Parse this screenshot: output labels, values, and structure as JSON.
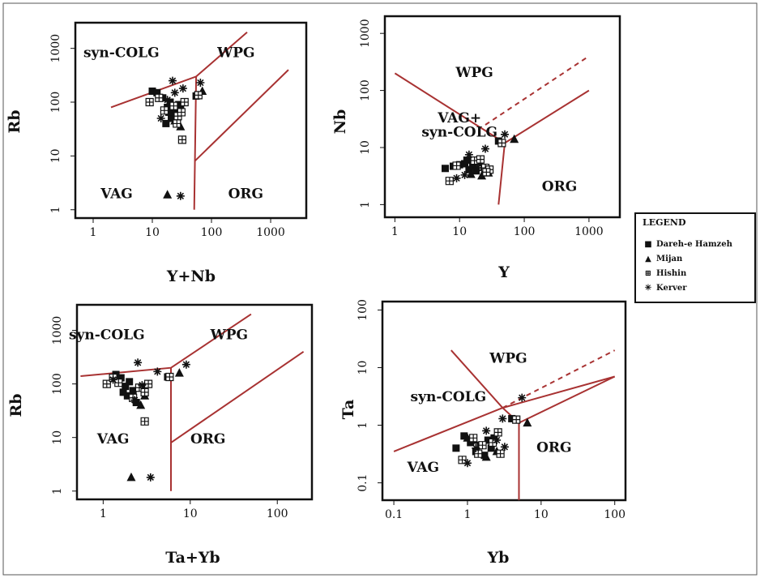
{
  "legend": {
    "title": "LEGEND",
    "items": [
      {
        "label": "Dareh-e Hamzeh",
        "symbol": "square"
      },
      {
        "label": "Mijan",
        "symbol": "triangle"
      },
      {
        "label": "Hishin",
        "symbol": "boxplus"
      },
      {
        "label": "Kerver",
        "symbol": "asterisk"
      }
    ]
  },
  "colors": {
    "line": "#a83232",
    "ink": "#111111"
  },
  "chart_data": [
    {
      "type": "scatter",
      "xlabel": "Y+Nb",
      "ylabel": "Rb",
      "xscale": "log",
      "yscale": "log",
      "xlim": [
        0.5,
        4000
      ],
      "ylim": [
        0.7,
        3000
      ],
      "xticks": [
        1,
        10,
        100,
        1000
      ],
      "yticks": [
        1,
        10,
        100,
        1000
      ],
      "regions": [
        {
          "label": "syn-COLG",
          "x": 3,
          "y": 800
        },
        {
          "label": "WPG",
          "x": 260,
          "y": 800
        },
        {
          "label": "VAG",
          "x": 2.5,
          "y": 1.9
        },
        {
          "label": "ORG",
          "x": 380,
          "y": 1.9
        }
      ],
      "boundaries": [
        {
          "style": "solid",
          "points": [
            [
              2,
              80
            ],
            [
              55,
              300
            ],
            [
              400,
              2000
            ]
          ]
        },
        {
          "style": "solid",
          "points": [
            [
              55,
              300
            ],
            [
              51,
              1
            ]
          ]
        },
        {
          "style": "solid",
          "points": [
            [
              52,
              8
            ],
            [
              2000,
              400
            ]
          ]
        }
      ],
      "series": [
        {
          "name": "Dareh-e Hamzeh",
          "symbol": "square",
          "points": [
            [
              10,
              160
            ],
            [
              12,
              150
            ],
            [
              15,
              120
            ],
            [
              18,
              80
            ],
            [
              20,
              100
            ],
            [
              22,
              60
            ],
            [
              25,
              70
            ],
            [
              17,
              40
            ],
            [
              28,
              90
            ],
            [
              21,
              50
            ],
            [
              30,
              75
            ],
            [
              55,
              130
            ],
            [
              19,
              65
            ]
          ]
        },
        {
          "name": "Mijan",
          "symbol": "triangle",
          "points": [
            [
              18,
              1.9
            ],
            [
              70,
              160
            ],
            [
              30,
              35
            ],
            [
              24,
              45
            ]
          ]
        },
        {
          "name": "Hishin",
          "symbol": "boxplus",
          "points": [
            [
              9,
              100
            ],
            [
              13,
              120
            ],
            [
              16,
              70
            ],
            [
              23,
              85
            ],
            [
              27,
              55
            ],
            [
              31,
              65
            ],
            [
              32,
              20
            ],
            [
              60,
              135
            ],
            [
              35,
              100
            ],
            [
              26,
              40
            ]
          ]
        },
        {
          "name": "Kerver",
          "symbol": "asterisk",
          "points": [
            [
              22,
              250
            ],
            [
              33,
              180
            ],
            [
              14,
              50
            ],
            [
              30,
              1.8
            ],
            [
              65,
              230
            ],
            [
              18,
              110
            ],
            [
              24,
              150
            ]
          ]
        }
      ]
    },
    {
      "type": "scatter",
      "xlabel": "Y",
      "ylabel": "Nb",
      "xscale": "log",
      "yscale": "log",
      "xlim": [
        0.7,
        3000
      ],
      "ylim": [
        0.6,
        2000
      ],
      "xticks": [
        1,
        10,
        100,
        1000
      ],
      "yticks": [
        1,
        10,
        100,
        1000
      ],
      "regions": [
        {
          "label": "WPG",
          "x": 17,
          "y": 200
        },
        {
          "label": "VAG+",
          "x": 10,
          "y": 32
        },
        {
          "label": "syn-COLG",
          "x": 10,
          "y": 18
        },
        {
          "label": "ORG",
          "x": 350,
          "y": 2
        }
      ],
      "boundaries": [
        {
          "style": "solid",
          "points": [
            [
              1,
              200
            ],
            [
              50,
              12
            ]
          ]
        },
        {
          "style": "solid",
          "points": [
            [
              40,
              1
            ],
            [
              50,
              12
            ],
            [
              1000,
              100
            ]
          ]
        },
        {
          "style": "dashed",
          "points": [
            [
              25,
              25
            ],
            [
              1000,
              400
            ]
          ]
        }
      ],
      "series": [
        {
          "name": "Dareh-e Hamzeh",
          "symbol": "square",
          "points": [
            [
              6,
              4.3
            ],
            [
              8,
              4.7
            ],
            [
              10,
              5
            ],
            [
              12,
              5.2
            ],
            [
              14,
              4.1
            ],
            [
              16,
              4.8
            ],
            [
              18,
              3.9
            ],
            [
              20,
              5.5
            ],
            [
              13,
              6
            ],
            [
              40,
              13
            ],
            [
              24,
              4.5
            ]
          ]
        },
        {
          "name": "Mijan",
          "symbol": "triangle",
          "points": [
            [
              70,
              14
            ],
            [
              15,
              3.4
            ],
            [
              22,
              3.2
            ],
            [
              28,
              3.6
            ]
          ]
        },
        {
          "name": "Hishin",
          "symbol": "boxplus",
          "points": [
            [
              7,
              2.6
            ],
            [
              9,
              4.8
            ],
            [
              17,
              5.9
            ],
            [
              21,
              6.2
            ],
            [
              25,
              4.4
            ],
            [
              29,
              4.1
            ],
            [
              45,
              12
            ],
            [
              26,
              3.7
            ]
          ]
        },
        {
          "name": "Kerver",
          "symbol": "asterisk",
          "points": [
            [
              9,
              2.9
            ],
            [
              14,
              7.5
            ],
            [
              19,
              4.4
            ],
            [
              25,
              9.5
            ],
            [
              50,
              17
            ],
            [
              12,
              3.3
            ]
          ]
        }
      ]
    },
    {
      "type": "scatter",
      "xlabel": "Ta+Yb",
      "ylabel": "Rb",
      "xscale": "log",
      "yscale": "log",
      "xlim": [
        0.5,
        250
      ],
      "ylim": [
        0.7,
        3000
      ],
      "xticks": [
        1,
        10,
        100
      ],
      "yticks": [
        1,
        10,
        100,
        1000
      ],
      "regions": [
        {
          "label": "syn-COLG",
          "x": 1.1,
          "y": 800
        },
        {
          "label": "WPG",
          "x": 28,
          "y": 800
        },
        {
          "label": "VAG",
          "x": 1.3,
          "y": 9
        },
        {
          "label": "ORG",
          "x": 16,
          "y": 9
        }
      ],
      "boundaries": [
        {
          "style": "solid",
          "points": [
            [
              0.55,
              140
            ],
            [
              6,
              200
            ],
            [
              50,
              2000
            ]
          ]
        },
        {
          "style": "solid",
          "points": [
            [
              6,
              200
            ],
            [
              6,
              1
            ]
          ]
        },
        {
          "style": "solid",
          "points": [
            [
              6,
              8
            ],
            [
              200,
              400
            ]
          ]
        }
      ],
      "series": [
        {
          "name": "Dareh-e Hamzeh",
          "symbol": "square",
          "points": [
            [
              1.4,
              150
            ],
            [
              1.6,
              130
            ],
            [
              1.8,
              90
            ],
            [
              1.9,
              60
            ],
            [
              2.0,
              110
            ],
            [
              2.2,
              75
            ],
            [
              2.4,
              45
            ],
            [
              2.7,
              85
            ],
            [
              5.5,
              135
            ],
            [
              1.7,
              70
            ]
          ]
        },
        {
          "name": "Mijan",
          "symbol": "triangle",
          "points": [
            [
              2.1,
              1.8
            ],
            [
              7.5,
              160
            ],
            [
              2.7,
              40
            ],
            [
              3,
              60
            ]
          ]
        },
        {
          "name": "Hishin",
          "symbol": "boxplus",
          "points": [
            [
              1.1,
              100
            ],
            [
              1.3,
              130
            ],
            [
              2.2,
              55
            ],
            [
              2.6,
              85
            ],
            [
              3.0,
              70
            ],
            [
              3.3,
              100
            ],
            [
              3.0,
              20
            ],
            [
              5.8,
              135
            ],
            [
              1.5,
              105
            ]
          ]
        },
        {
          "name": "Kerver",
          "symbol": "asterisk",
          "points": [
            [
              2.5,
              250
            ],
            [
              1.3,
              120
            ],
            [
              2.3,
              50
            ],
            [
              3.5,
              1.8
            ],
            [
              9,
              230
            ],
            [
              4.2,
              170
            ],
            [
              2.8,
              95
            ]
          ]
        }
      ]
    },
    {
      "type": "scatter",
      "xlabel": "Yb",
      "ylabel": "Ta",
      "xscale": "log",
      "yscale": "log",
      "xlim": [
        0.07,
        140
      ],
      "ylim": [
        0.05,
        140
      ],
      "xticks": [
        0.1,
        1,
        10,
        100
      ],
      "yticks": [
        0.1,
        1,
        10,
        100
      ],
      "regions": [
        {
          "label": "WPG",
          "x": 3.6,
          "y": 14
        },
        {
          "label": "syn-COLG",
          "x": 0.55,
          "y": 3.0
        },
        {
          "label": "VAG",
          "x": 0.25,
          "y": 0.18
        },
        {
          "label": "ORG",
          "x": 15,
          "y": 0.4
        }
      ],
      "boundaries": [
        {
          "style": "solid",
          "points": [
            [
              0.1,
              0.35
            ],
            [
              3,
              2
            ],
            [
              100,
              7
            ]
          ]
        },
        {
          "style": "solid",
          "points": [
            [
              0.6,
              20
            ],
            [
              3,
              2
            ],
            [
              5,
              1.1
            ]
          ]
        },
        {
          "style": "solid",
          "points": [
            [
              5,
              1.1
            ],
            [
              5,
              0.05
            ]
          ]
        },
        {
          "style": "solid",
          "points": [
            [
              5,
              1.1
            ],
            [
              100,
              7
            ]
          ]
        },
        {
          "style": "dashed",
          "points": [
            [
              3,
              2
            ],
            [
              100,
              20
            ]
          ]
        }
      ],
      "series": [
        {
          "name": "Dareh-e Hamzeh",
          "symbol": "square",
          "points": [
            [
              0.7,
              0.4
            ],
            [
              0.9,
              0.65
            ],
            [
              1.1,
              0.5
            ],
            [
              1.3,
              0.35
            ],
            [
              1.5,
              0.45
            ],
            [
              1.7,
              0.3
            ],
            [
              1.9,
              0.55
            ],
            [
              2.1,
              0.4
            ],
            [
              2.3,
              0.6
            ],
            [
              4,
              1.3
            ],
            [
              1.2,
              0.55
            ]
          ]
        },
        {
          "name": "Mijan",
          "symbol": "triangle",
          "points": [
            [
              6.5,
              1.1
            ],
            [
              1.0,
              0.6
            ],
            [
              2.5,
              0.35
            ],
            [
              1.8,
              0.28
            ]
          ]
        },
        {
          "name": "Hishin",
          "symbol": "boxplus",
          "points": [
            [
              0.85,
              0.25
            ],
            [
              1.2,
              0.6
            ],
            [
              1.6,
              0.45
            ],
            [
              2.2,
              0.5
            ],
            [
              2.6,
              0.75
            ],
            [
              2.8,
              0.32
            ],
            [
              4.6,
              1.25
            ],
            [
              1.4,
              0.32
            ]
          ]
        },
        {
          "name": "Kerver",
          "symbol": "asterisk",
          "points": [
            [
              5.5,
              3.0
            ],
            [
              1.0,
              0.22
            ],
            [
              1.8,
              0.8
            ],
            [
              3.0,
              1.3
            ],
            [
              2.5,
              0.55
            ],
            [
              3.2,
              0.42
            ],
            [
              1.3,
              0.4
            ]
          ]
        }
      ]
    }
  ]
}
